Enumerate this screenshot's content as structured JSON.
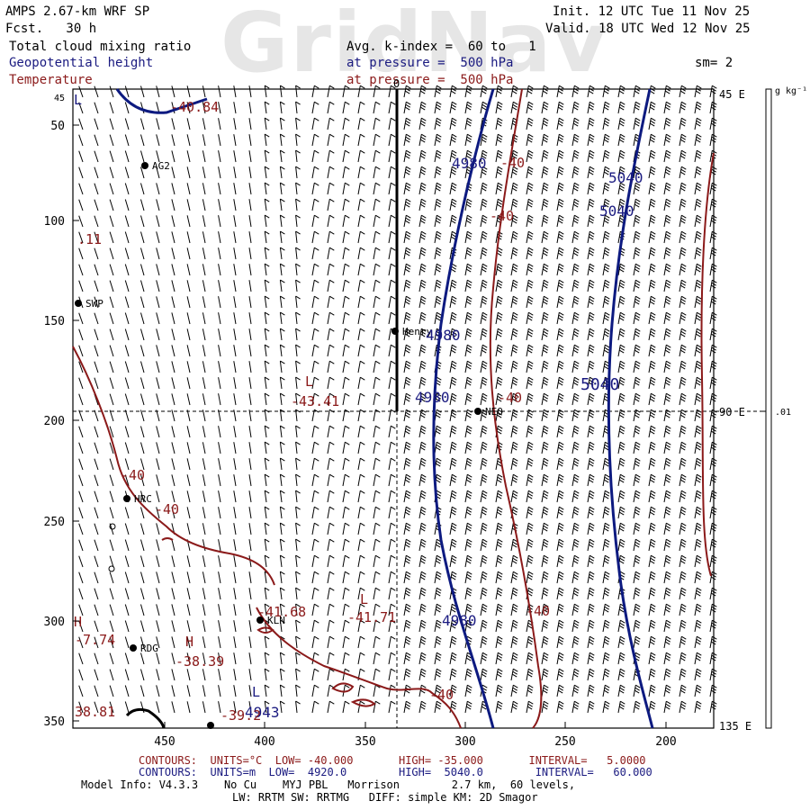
{
  "header": {
    "watermark": "GridNav",
    "model_title": "AMPS 2.67-km WRF SP",
    "forecast": "Fcst.   30 h",
    "init": "Init. 12 UTC Tue 11 Nov 25",
    "valid": "Valid. 18 UTC Wed 12 Nov 25",
    "field1": "Total cloud mixing ratio",
    "field2": "Geopotential height",
    "field3": "Temperature",
    "avg_line": "Avg. k-index =  60 to   1",
    "pressure1": "at pressure =  500 hPa",
    "pressure2": "at pressure =  500 hPa",
    "smoothing": "sm= 2"
  },
  "axes": {
    "left_ticks": [
      "50",
      "100",
      "150",
      "200",
      "250",
      "300",
      "350"
    ],
    "left_tick_top": "45",
    "bottom_ticks": [
      "450",
      "400",
      "350",
      "300",
      "250",
      "200"
    ],
    "right_labels": [
      "45 E",
      "90 E",
      "135 E"
    ],
    "top_label": "0",
    "colorbar_unit": "g kg⁻¹",
    "colorbar_value": ".01"
  },
  "stations": [
    {
      "name": "AG2"
    },
    {
      "name": "SWP"
    },
    {
      "name": "Henry"
    },
    {
      "name": "NEO"
    },
    {
      "name": "HRC"
    },
    {
      "name": "KLN"
    },
    {
      "name": "RDG"
    }
  ],
  "contour_labels": {
    "height": [
      "4980",
      "5040",
      "5040",
      "4980",
      "4980",
      "5040",
      "4980",
      "4943"
    ],
    "temperature": [
      "-40.84",
      "-40",
      "-40",
      ".11",
      "-43.41",
      "-40",
      "-40",
      "-40",
      "-41.68",
      "-41.71",
      "-40",
      "-7.74",
      "-38.39",
      "38.81",
      "-39.2",
      "-40"
    ],
    "extrema": [
      "L",
      "L",
      "H",
      "L",
      "H",
      "L"
    ]
  },
  "footer": {
    "temp_contours": "CONTOURS:  UNITS=°C  LOW= -40.000       HIGH= -35.000       INTERVAL=   5.0000",
    "height_contours": "CONTOURS:  UNITS=m  LOW=  4920.0        HIGH=  5040.0        INTERVAL=   60.000",
    "model_info": "Model Info: V4.3.3    No Cu    MYJ PBL   Morrison        2.7 km,  60 levels,",
    "physics": "LW: RRTM SW: RRTMG   DIFF: simple KM: 2D Smagor"
  },
  "colors": {
    "height_contour": "#0d1a80",
    "temperature_contour": "#8b1a1a",
    "wind_barb": "#000000",
    "watermark": "#e6e6e6"
  }
}
